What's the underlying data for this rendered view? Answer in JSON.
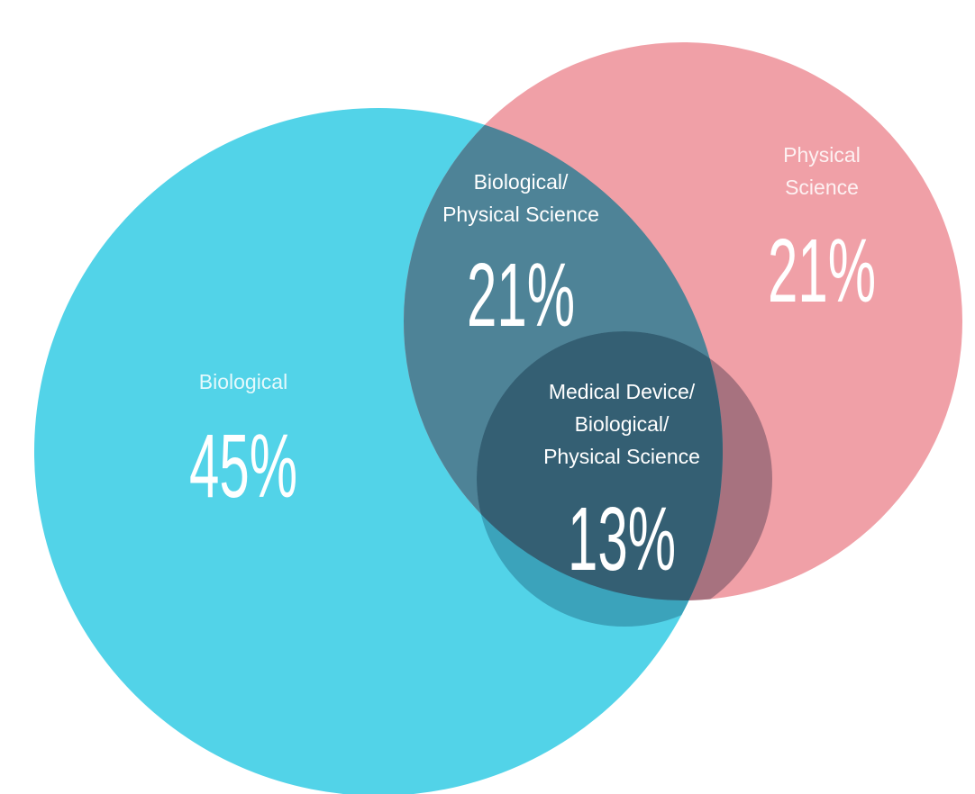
{
  "chart_data": {
    "type": "venn",
    "categories": [
      [
        "Biological"
      ],
      [
        "Biological/",
        "Physical Science"
      ],
      [
        "Physical",
        "Science"
      ],
      [
        "Medical Device/",
        "Biological/",
        "Physical Science"
      ]
    ],
    "values": [
      45,
      21,
      21,
      13
    ],
    "value_labels": [
      "45%",
      "21%",
      "21%",
      "13%"
    ]
  }
}
